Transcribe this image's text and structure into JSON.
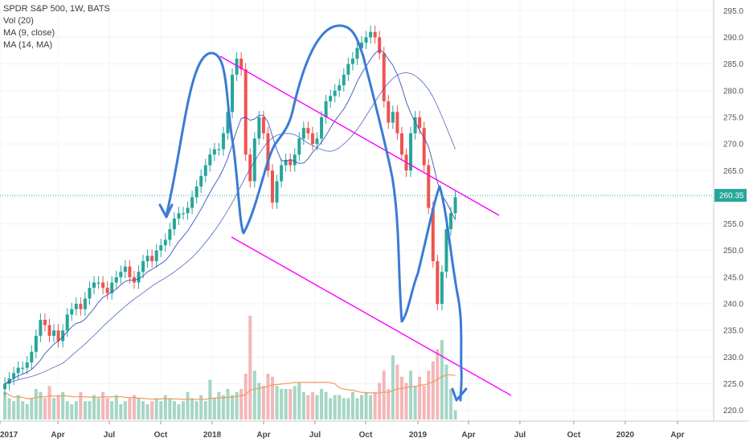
{
  "legend": {
    "symbol": "SPDR S&P 500, 1W, BATS",
    "vol": "Vol (20)",
    "ma1": "MA (9, close)",
    "ma2": "MA (14, MA)"
  },
  "current_price": "260.35",
  "colors": {
    "up": "#26a69a",
    "down": "#ef5350",
    "vol_up": "#a5d6c5",
    "vol_down": "#f4b6b8",
    "ma_thin": "#3f51b5",
    "vol_ma": "#f29b5a",
    "channel": "#ff00ff",
    "drawing": "#3a7bd5",
    "price_line": "#26a69a"
  },
  "chart_data": {
    "type": "candlestick",
    "title": "SPDR S&P 500, 1W, BATS",
    "ylim": [
      218,
      297
    ],
    "y_ticks": [
      220,
      225,
      230,
      235,
      240,
      245,
      250,
      255,
      260,
      265,
      270,
      275,
      280,
      285,
      290,
      295
    ],
    "x_ticks": [
      "2017",
      "Apr",
      "Jul",
      "Oct",
      "2018",
      "Apr",
      "Jul",
      "Oct",
      "2019",
      "Apr",
      "Jul",
      "Oct",
      "2020",
      "Apr"
    ],
    "closes": [
      225,
      226,
      227,
      228,
      228,
      229,
      231,
      234,
      237,
      236,
      234,
      235,
      233,
      235,
      238,
      239,
      240,
      239,
      241,
      243,
      244,
      244,
      243,
      242,
      244,
      245,
      246,
      247,
      245,
      244,
      246,
      248,
      249,
      248,
      250,
      251,
      252,
      254,
      256,
      257,
      257,
      258,
      260,
      262,
      264,
      266,
      268,
      269,
      269,
      272,
      276,
      283,
      286,
      284,
      268,
      263,
      271,
      275,
      272,
      265,
      259,
      263,
      266,
      267,
      266,
      268,
      271,
      273,
      272,
      270,
      271,
      275,
      278,
      279,
      280,
      281,
      283,
      285,
      286,
      288,
      289,
      290,
      291,
      290,
      287,
      278,
      274,
      276,
      272,
      268,
      265,
      272,
      275,
      273,
      266,
      258,
      248,
      240,
      246,
      254,
      257,
      260
    ],
    "opens": [
      224,
      225,
      226,
      227,
      228,
      228,
      229,
      231,
      234,
      237,
      236,
      234,
      235,
      233,
      235,
      238,
      239,
      240,
      239,
      241,
      243,
      244,
      244,
      243,
      242,
      244,
      245,
      246,
      247,
      245,
      244,
      246,
      248,
      249,
      248,
      250,
      251,
      252,
      254,
      256,
      257,
      257,
      258,
      260,
      262,
      264,
      266,
      268,
      269,
      269,
      272,
      276,
      283,
      286,
      284,
      268,
      263,
      271,
      275,
      272,
      265,
      259,
      263,
      266,
      267,
      266,
      268,
      271,
      273,
      272,
      270,
      271,
      275,
      278,
      279,
      280,
      281,
      283,
      285,
      286,
      288,
      289,
      290,
      291,
      290,
      287,
      278,
      274,
      276,
      272,
      268,
      265,
      272,
      275,
      273,
      266,
      258,
      248,
      240,
      246,
      254,
      257
    ],
    "volumes": [
      0.9,
      0.7,
      0.6,
      0.8,
      0.6,
      0.5,
      0.7,
      1.0,
      0.9,
      0.7,
      1.1,
      0.7,
      0.8,
      0.9,
      0.6,
      0.5,
      0.6,
      0.9,
      0.6,
      0.6,
      0.8,
      0.7,
      0.9,
      0.7,
      0.6,
      0.8,
      0.5,
      0.6,
      0.7,
      0.8,
      0.7,
      0.6,
      0.5,
      0.6,
      0.7,
      0.6,
      0.8,
      0.7,
      0.6,
      0.5,
      0.6,
      0.9,
      0.7,
      0.6,
      0.8,
      0.6,
      1.3,
      0.7,
      0.9,
      0.8,
      1.0,
      0.8,
      0.9,
      1.0,
      1.5,
      3.4,
      1.6,
      1.2,
      1.1,
      1.5,
      1.4,
      1.1,
      1.0,
      1.0,
      1.0,
      1.1,
      1.2,
      0.9,
      0.8,
      0.9,
      0.8,
      1.0,
      0.9,
      0.7,
      0.8,
      0.8,
      0.7,
      0.7,
      0.9,
      0.7,
      0.8,
      0.9,
      0.8,
      0.9,
      1.2,
      1.6,
      1.0,
      2.1,
      1.8,
      1.4,
      1.2,
      1.6,
      1.1,
      1.4,
      1.1,
      1.6,
      1.9,
      2.3,
      2.6,
      1.8,
      1.0,
      0.3
    ],
    "x_end_index": 150
  }
}
